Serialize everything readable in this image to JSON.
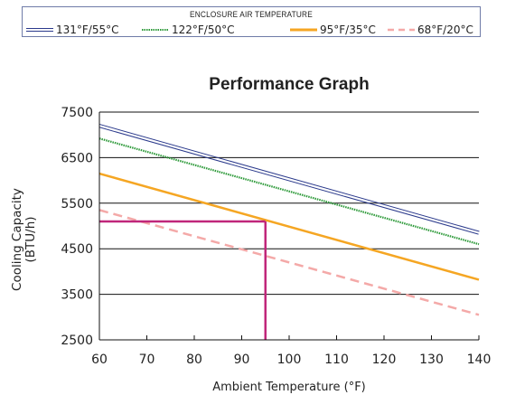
{
  "legend": {
    "title": "ENCLOSURE AIR TEMPERATURE",
    "items": [
      {
        "label": "131°F/55°C",
        "color": "#2b3a8c",
        "style": "double"
      },
      {
        "label": "122°F/50°C",
        "color": "#2e9a3a",
        "style": "dotted"
      },
      {
        "label": "95°F/35°C",
        "color": "#f5a623",
        "style": "solid"
      },
      {
        "label": "68°F/20°C",
        "color": "#f4a9a8",
        "style": "dashed"
      }
    ]
  },
  "chart_data": {
    "type": "line",
    "title": "Performance Graph",
    "xlabel": "Ambient Temperature (°F)",
    "ylabel_lines": [
      "Cooling Capacity",
      "(BTU/h)"
    ],
    "xlim": [
      60,
      140
    ],
    "ylim": [
      2500,
      7500
    ],
    "x_ticks": [
      60,
      70,
      80,
      90,
      100,
      110,
      120,
      130,
      140
    ],
    "y_ticks": [
      2500,
      3500,
      4500,
      5500,
      6500,
      7500
    ],
    "grid": "horizontal",
    "series": [
      {
        "name": "131°F/55°C",
        "x": [
          60,
          140
        ],
        "y": [
          7200,
          4850
        ]
      },
      {
        "name": "122°F/50°C",
        "x": [
          60,
          140
        ],
        "y": [
          6920,
          4600
        ]
      },
      {
        "name": "95°F/35°C",
        "x": [
          60,
          140
        ],
        "y": [
          6150,
          3820
        ]
      },
      {
        "name": "68°F/20°C",
        "x": [
          60,
          140
        ],
        "y": [
          5350,
          3050
        ]
      }
    ],
    "reference": {
      "x": 95,
      "y": 5100,
      "color": "#c0267a"
    }
  }
}
